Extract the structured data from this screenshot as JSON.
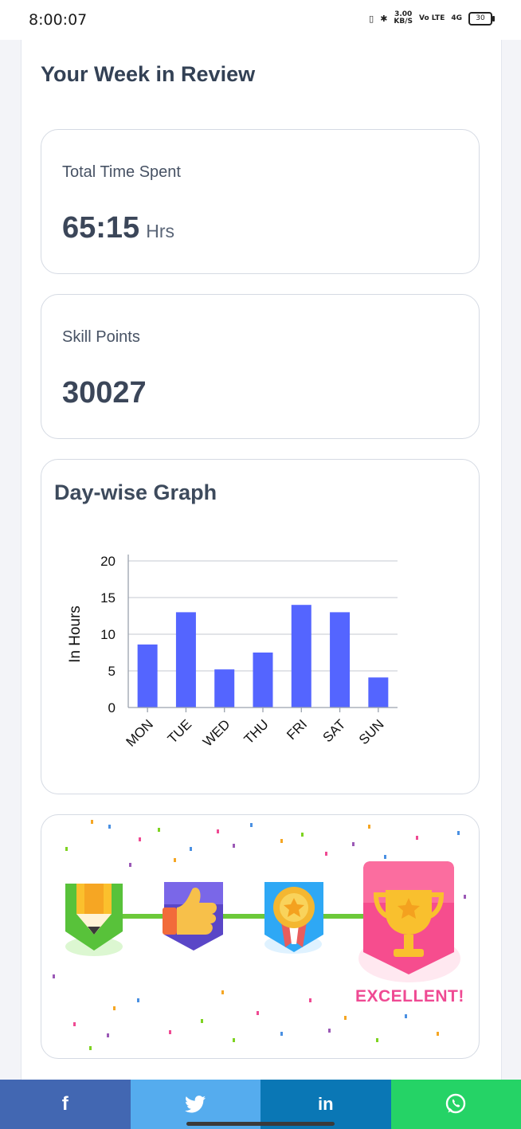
{
  "status_bar": {
    "time": "8:00:07",
    "net_speed": "3.00",
    "net_unit": "KB/S",
    "volte": "Vo LTE",
    "signal": "4G",
    "battery": "30"
  },
  "page": {
    "title": "Your Week in Review"
  },
  "time_card": {
    "label": "Total Time Spent",
    "value": "65:15",
    "unit": "Hrs"
  },
  "skill_card": {
    "label": "Skill Points",
    "value": "30027"
  },
  "graph_card": {
    "title": "Day-wise Graph"
  },
  "chart_data": {
    "type": "bar",
    "categories": [
      "MON",
      "TUE",
      "WED",
      "THU",
      "FRI",
      "SAT",
      "SUN"
    ],
    "values": [
      8.6,
      13,
      5.2,
      7.5,
      14,
      13,
      4.1
    ],
    "ylabel": "In Hours",
    "xlabel": "",
    "ylim": [
      0,
      20
    ],
    "yticks": [
      0,
      5,
      10,
      15,
      20
    ],
    "grid": true,
    "bar_color": "#5465ff"
  },
  "rewards": {
    "badges": [
      "pencil-badge-icon",
      "thumbs-up-badge-icon",
      "medal-badge-icon",
      "trophy-badge-icon"
    ],
    "excellent_label": "EXCELLENT!",
    "accent_color": "#ef4a93",
    "line_color": "#6cc93a"
  },
  "share": {
    "facebook": "f",
    "twitter": "twitter",
    "linkedin": "in",
    "whatsapp": "whatsapp"
  }
}
